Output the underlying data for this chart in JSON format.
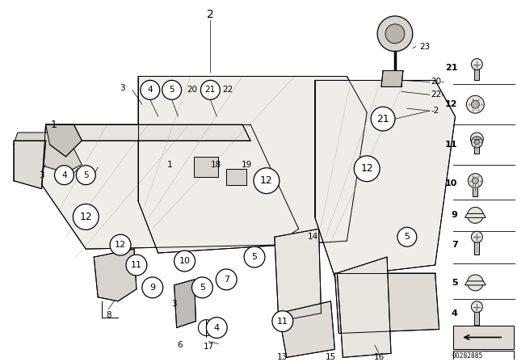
{
  "bg_color": "#ffffff",
  "fig_width": 6.4,
  "fig_height": 4.48,
  "dpi": 100,
  "watermark": "00282885",
  "line_color": "#000000",
  "fill_light": "#f5f3f0",
  "fill_mid": "#e8e4de",
  "fill_dark": "#d0cbc4"
}
